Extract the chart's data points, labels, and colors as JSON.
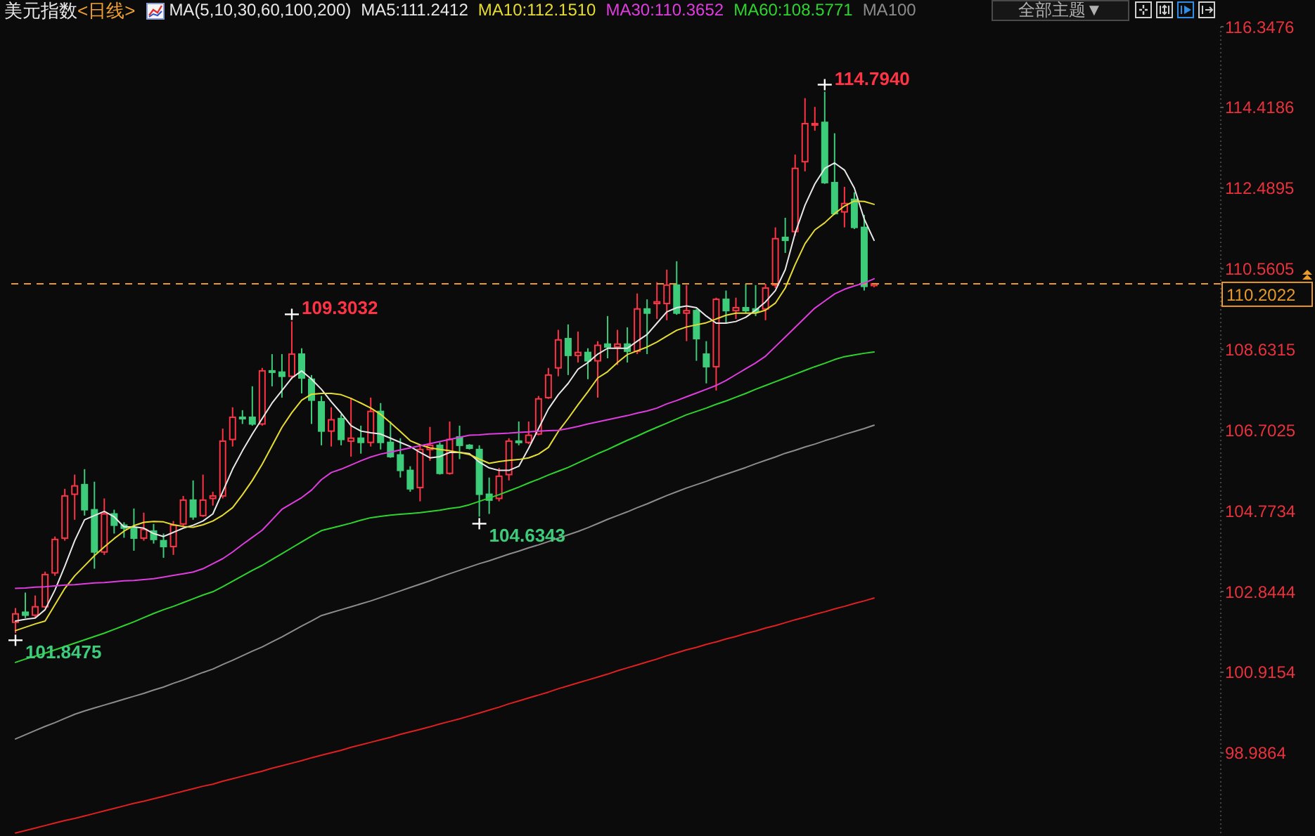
{
  "chart_data": {
    "type": "candlestick",
    "title": "美元指数",
    "subtitle": "<日线>",
    "legend_title": "MA(5,10,30,60,100,200)",
    "categories": [
      null,
      null,
      null,
      null,
      null,
      null,
      null,
      null,
      null,
      null,
      null,
      null,
      null,
      null,
      null,
      null,
      null,
      null,
      null,
      null,
      null,
      null,
      null,
      null,
      null,
      null,
      null,
      null,
      null,
      null,
      null,
      null,
      null,
      null,
      null,
      null,
      null,
      null,
      null,
      null,
      null,
      null,
      null,
      null,
      null,
      null,
      null,
      null,
      null,
      null,
      null,
      null,
      null,
      null,
      null,
      null,
      null,
      null,
      null,
      null,
      null,
      null,
      null,
      null,
      null,
      null,
      null,
      null,
      null,
      null,
      null,
      null,
      null,
      null,
      null,
      null,
      null,
      null,
      null,
      null,
      null,
      null,
      null,
      null,
      null,
      null,
      null,
      null
    ],
    "ohlc": [
      [
        102.11,
        102.45,
        101.8475,
        102.31
      ],
      [
        102.35,
        102.82,
        102.21,
        102.28
      ],
      [
        102.28,
        102.75,
        102.21,
        102.48
      ],
      [
        102.48,
        103.32,
        102.45,
        103.25
      ],
      [
        103.29,
        104.16,
        103.22,
        104.09
      ],
      [
        104.12,
        105.3,
        104.06,
        105.13
      ],
      [
        105.17,
        105.64,
        104.56,
        105.37
      ],
      [
        105.4,
        105.77,
        104.66,
        104.8
      ],
      [
        104.8,
        105.47,
        103.39,
        103.79
      ],
      [
        103.79,
        105.07,
        103.72,
        104.7
      ],
      [
        104.7,
        104.8,
        104.23,
        104.43
      ],
      [
        104.43,
        104.5,
        104.13,
        104.36
      ],
      [
        104.36,
        104.83,
        103.82,
        104.12
      ],
      [
        104.12,
        104.73,
        104.06,
        104.33
      ],
      [
        104.29,
        104.46,
        103.99,
        104.09
      ],
      [
        104.06,
        104.23,
        103.65,
        103.92
      ],
      [
        103.92,
        104.53,
        103.72,
        104.43
      ],
      [
        104.46,
        105.13,
        104.39,
        105.03
      ],
      [
        105.03,
        105.5,
        104.56,
        104.63
      ],
      [
        104.66,
        105.64,
        104.63,
        105.03
      ],
      [
        105.07,
        105.23,
        104.9,
        105.13
      ],
      [
        105.13,
        106.74,
        105.07,
        106.44
      ],
      [
        106.48,
        107.25,
        106.31,
        107.01
      ],
      [
        107.01,
        107.18,
        106.85,
        106.98
      ],
      [
        107.01,
        107.75,
        106.81,
        106.85
      ],
      [
        106.85,
        108.19,
        106.81,
        108.12
      ],
      [
        108.12,
        108.52,
        107.75,
        108.09
      ],
      [
        108.09,
        108.52,
        107.48,
        107.99
      ],
      [
        107.99,
        109.3032,
        107.92,
        108.52
      ],
      [
        108.52,
        108.66,
        107.58,
        107.95
      ],
      [
        107.92,
        108.02,
        106.85,
        107.42
      ],
      [
        107.38,
        107.52,
        106.34,
        106.68
      ],
      [
        106.68,
        107.25,
        106.31,
        106.95
      ],
      [
        106.98,
        107.08,
        106.34,
        106.48
      ],
      [
        106.44,
        107.48,
        106.07,
        106.51
      ],
      [
        106.51,
        106.81,
        106.14,
        106.41
      ],
      [
        106.41,
        107.48,
        106.31,
        107.15
      ],
      [
        107.15,
        107.35,
        106.24,
        106.41
      ],
      [
        106.41,
        106.91,
        106.04,
        106.07
      ],
      [
        106.11,
        106.51,
        105.57,
        105.74
      ],
      [
        105.74,
        105.84,
        105.23,
        105.3
      ],
      [
        105.33,
        106.34,
        105.0,
        106.24
      ],
      [
        106.24,
        106.78,
        105.97,
        106.34
      ],
      [
        106.34,
        106.41,
        105.64,
        105.67
      ],
      [
        105.67,
        106.91,
        105.64,
        106.48
      ],
      [
        106.54,
        106.81,
        106.01,
        106.34
      ],
      [
        106.34,
        106.37,
        106.24,
        106.27
      ],
      [
        106.24,
        106.34,
        104.6343,
        105.17
      ],
      [
        105.17,
        105.57,
        104.7,
        105.03
      ],
      [
        105.07,
        105.8,
        105.0,
        105.6
      ],
      [
        105.64,
        106.51,
        105.5,
        106.44
      ],
      [
        106.44,
        106.91,
        106.34,
        106.41
      ],
      [
        106.41,
        106.91,
        106.37,
        106.58
      ],
      [
        106.61,
        107.52,
        106.58,
        107.45
      ],
      [
        107.48,
        108.19,
        107.45,
        108.02
      ],
      [
        108.19,
        109.1,
        107.99,
        108.86
      ],
      [
        108.89,
        109.23,
        108.02,
        108.49
      ],
      [
        108.49,
        109.06,
        108.32,
        108.56
      ],
      [
        108.56,
        108.66,
        107.92,
        108.36
      ],
      [
        108.36,
        108.83,
        107.48,
        108.73
      ],
      [
        108.76,
        109.43,
        108.42,
        108.69
      ],
      [
        108.69,
        109.1,
        108.26,
        108.76
      ],
      [
        108.76,
        109.16,
        108.32,
        108.59
      ],
      [
        108.59,
        109.97,
        108.52,
        109.6
      ],
      [
        109.6,
        109.83,
        108.52,
        109.5
      ],
      [
        109.73,
        110.24,
        109.36,
        109.77
      ],
      [
        109.73,
        110.54,
        109.33,
        110.17
      ],
      [
        110.17,
        110.74,
        109.46,
        109.5
      ],
      [
        109.5,
        110.17,
        108.83,
        109.56
      ],
      [
        109.56,
        109.6,
        108.36,
        108.89
      ],
      [
        108.52,
        108.83,
        107.82,
        108.22
      ],
      [
        108.22,
        109.87,
        107.65,
        109.83
      ],
      [
        109.83,
        110.04,
        109.26,
        109.56
      ],
      [
        109.56,
        109.87,
        109.36,
        109.63
      ],
      [
        109.63,
        110.2,
        109.5,
        109.56
      ],
      [
        109.6,
        110.17,
        109.43,
        109.53
      ],
      [
        109.6,
        110.2,
        109.33,
        110.1
      ],
      [
        110.17,
        111.55,
        110.1,
        111.28
      ],
      [
        111.31,
        111.78,
        110.94,
        111.24
      ],
      [
        111.45,
        113.29,
        111.35,
        112.96
      ],
      [
        113.12,
        114.64,
        112.89,
        114.03
      ],
      [
        114.0,
        114.43,
        113.86,
        114.03
      ],
      [
        114.06,
        114.794,
        112.59,
        112.62
      ],
      [
        112.62,
        113.8,
        111.85,
        111.88
      ],
      [
        111.92,
        112.52,
        111.55,
        112.12
      ],
      [
        112.22,
        112.39,
        111.51,
        111.55
      ],
      [
        111.55,
        111.85,
        110.04,
        110.14
      ],
      [
        110.16,
        110.22,
        110.12,
        110.2022
      ]
    ],
    "colors": [
      "#ff3344",
      "#3dcc7a",
      "#ff3344",
      "#ff3344",
      "#ff3344",
      "#ff3344",
      "#ff3344",
      "#3dcc7a",
      "#3dcc7a",
      "#ff3344",
      "#3dcc7a",
      "#3dcc7a",
      "#3dcc7a",
      "#ff3344",
      "#3dcc7a",
      "#3dcc7a",
      "#ff3344",
      "#ff3344",
      "#3dcc7a",
      "#ff3344",
      "#ff3344",
      "#ff3344",
      "#ff3344",
      "#3dcc7a",
      "#3dcc7a",
      "#ff3344",
      "#3dcc7a",
      "#3dcc7a",
      "#ff3344",
      "#3dcc7a",
      "#3dcc7a",
      "#3dcc7a",
      "#ff3344",
      "#3dcc7a",
      "#ff3344",
      "#3dcc7a",
      "#ff3344",
      "#3dcc7a",
      "#3dcc7a",
      "#3dcc7a",
      "#3dcc7a",
      "#ff3344",
      "#ff3344",
      "#3dcc7a",
      "#ff3344",
      "#3dcc7a",
      "#3dcc7a",
      "#3dcc7a",
      "#3dcc7a",
      "#ff3344",
      "#ff3344",
      "#3dcc7a",
      "#ff3344",
      "#ff3344",
      "#ff3344",
      "#ff3344",
      "#3dcc7a",
      "#ff3344",
      "#3dcc7a",
      "#ff3344",
      "#3dcc7a",
      "#ff3344",
      "#3dcc7a",
      "#ff3344",
      "#3dcc7a",
      "#ff3344",
      "#ff3344",
      "#3dcc7a",
      "#ff3344",
      "#3dcc7a",
      "#3dcc7a",
      "#ff3344",
      "#3dcc7a",
      "#ff3344",
      "#3dcc7a",
      "#3dcc7a",
      "#ff3344",
      "#ff3344",
      "#3dcc7a",
      "#ff3344",
      "#ff3344",
      "#ff3344",
      "#3dcc7a",
      "#3dcc7a",
      "#ff3344",
      "#3dcc7a",
      "#3dcc7a",
      "#ff3344"
    ],
    "series": [
      {
        "type": "line",
        "name": "MA5:111.2412",
        "color": "#e8e8e8",
        "values": [
          102.14,
          102.18,
          102.21,
          102.41,
          102.88,
          103.45,
          104.06,
          104.56,
          104.66,
          104.76,
          104.63,
          104.39,
          104.39,
          104.36,
          104.23,
          104.16,
          104.26,
          104.36,
          104.43,
          104.53,
          104.7,
          105.23,
          105.77,
          106.21,
          106.61,
          106.98,
          107.35,
          107.65,
          107.95,
          108.12,
          107.92,
          107.68,
          107.38,
          107.11,
          106.81,
          106.68,
          106.64,
          106.61,
          106.51,
          106.41,
          106.31,
          106.17,
          106.04,
          106.07,
          106.17,
          106.17,
          106.14,
          105.94,
          105.8,
          105.74,
          105.74,
          105.84,
          106.27,
          106.74,
          107.21,
          107.55,
          107.82,
          108.16,
          108.32,
          108.52,
          108.66,
          108.66,
          108.66,
          108.83,
          108.99,
          109.26,
          109.53,
          109.63,
          109.67,
          109.63,
          109.43,
          109.26,
          109.26,
          109.3,
          109.4,
          109.57,
          109.77,
          110.04,
          110.54,
          111.41,
          112.08,
          112.59,
          112.96,
          113.09,
          112.92,
          112.49,
          111.75,
          111.24
        ]
      },
      {
        "type": "line",
        "name": "MA10:112.1510",
        "color": "#e6dc32",
        "values": [
          101.91,
          101.99,
          102.07,
          102.14,
          102.53,
          102.92,
          103.22,
          103.46,
          103.7,
          103.91,
          104.11,
          104.29,
          104.42,
          104.5,
          104.52,
          104.51,
          104.44,
          104.4,
          104.38,
          104.44,
          104.53,
          104.67,
          104.85,
          105.16,
          105.5,
          105.89,
          106.33,
          106.77,
          107.12,
          107.42,
          107.56,
          107.58,
          107.58,
          107.55,
          107.46,
          107.35,
          107.23,
          107.08,
          106.88,
          106.67,
          106.45,
          106.35,
          106.28,
          106.24,
          106.21,
          106.17,
          106.12,
          106.01,
          105.91,
          105.95,
          105.98,
          106.0,
          106.04,
          106.13,
          106.29,
          106.67,
          106.98,
          107.31,
          107.62,
          107.95,
          108.1,
          108.32,
          108.51,
          108.6,
          108.69,
          108.81,
          108.95,
          109.09,
          109.17,
          109.22,
          109.27,
          109.36,
          109.45,
          109.5,
          109.5,
          109.5,
          109.57,
          109.74,
          110.1,
          110.66,
          111.16,
          111.49,
          111.66,
          111.88,
          112.06,
          112.18,
          112.17,
          112.1
        ]
      },
      {
        "type": "line",
        "name": "MA30:110.3652",
        "color": "#e03ce0",
        "values": [
          102.92,
          102.93,
          102.95,
          102.96,
          102.98,
          103.0,
          103.01,
          103.03,
          103.05,
          103.06,
          103.08,
          103.1,
          103.11,
          103.13,
          103.15,
          103.19,
          103.23,
          103.27,
          103.31,
          103.39,
          103.51,
          103.63,
          103.79,
          103.97,
          104.14,
          104.31,
          104.56,
          104.81,
          104.95,
          105.09,
          105.27,
          105.52,
          105.69,
          105.77,
          105.87,
          105.97,
          106.06,
          106.13,
          106.18,
          106.23,
          106.28,
          106.33,
          106.38,
          106.43,
          106.48,
          106.53,
          106.58,
          106.59,
          106.61,
          106.62,
          106.63,
          106.65,
          106.66,
          106.68,
          106.69,
          106.7,
          106.74,
          106.79,
          106.85,
          106.9,
          106.95,
          107.0,
          107.05,
          107.11,
          107.16,
          107.23,
          107.33,
          107.41,
          107.5,
          107.59,
          107.68,
          107.77,
          107.89,
          108.03,
          108.17,
          108.31,
          108.47,
          108.7,
          108.93,
          109.16,
          109.39,
          109.62,
          109.79,
          109.96,
          110.07,
          110.15,
          110.22,
          110.32
        ]
      },
      {
        "type": "line",
        "name": "MA60:108.5771",
        "color": "#2ed42e",
        "values": [
          101.15,
          101.23,
          101.3,
          101.37,
          101.45,
          101.53,
          101.61,
          101.69,
          101.77,
          101.85,
          101.94,
          102.03,
          102.12,
          102.22,
          102.32,
          102.41,
          102.49,
          102.58,
          102.67,
          102.76,
          102.84,
          102.96,
          103.09,
          103.22,
          103.35,
          103.47,
          103.61,
          103.75,
          103.89,
          104.03,
          104.17,
          104.3,
          104.36,
          104.42,
          104.48,
          104.55,
          104.61,
          104.64,
          104.67,
          104.69,
          104.71,
          104.73,
          104.76,
          104.79,
          104.83,
          104.86,
          104.92,
          105.0,
          105.08,
          105.16,
          105.25,
          105.34,
          105.44,
          105.53,
          105.63,
          105.72,
          105.81,
          105.92,
          106.03,
          106.14,
          106.24,
          106.35,
          106.46,
          106.56,
          106.67,
          106.77,
          106.87,
          106.97,
          107.07,
          107.15,
          107.23,
          107.32,
          107.4,
          107.49,
          107.58,
          107.68,
          107.77,
          107.86,
          107.95,
          108.04,
          108.13,
          108.22,
          108.3,
          108.39,
          108.46,
          108.5,
          108.54,
          108.57
        ]
      },
      {
        "type": "line",
        "name": "MA100",
        "color": "#8c8c8c",
        "values": [
          99.32,
          99.42,
          99.52,
          99.62,
          99.71,
          99.81,
          99.91,
          99.99,
          100.06,
          100.13,
          100.2,
          100.27,
          100.34,
          100.41,
          100.49,
          100.56,
          100.65,
          100.73,
          100.82,
          100.91,
          100.99,
          101.1,
          101.2,
          101.31,
          101.42,
          101.52,
          101.64,
          101.76,
          101.89,
          102.02,
          102.14,
          102.27,
          102.34,
          102.41,
          102.48,
          102.55,
          102.62,
          102.7,
          102.78,
          102.86,
          102.94,
          103.02,
          103.1,
          103.19,
          103.27,
          103.35,
          103.43,
          103.51,
          103.58,
          103.66,
          103.74,
          103.81,
          103.89,
          103.96,
          104.04,
          104.12,
          104.2,
          104.28,
          104.37,
          104.47,
          104.57,
          104.66,
          104.75,
          104.85,
          104.94,
          105.04,
          105.14,
          105.23,
          105.32,
          105.4,
          105.48,
          105.57,
          105.65,
          105.73,
          105.81,
          105.9,
          105.98,
          106.06,
          106.15,
          106.22,
          106.3,
          106.37,
          106.45,
          106.52,
          106.6,
          106.67,
          106.74,
          106.82
        ]
      },
      {
        "type": "line",
        "color": "#e02020",
        "values": [
          97.07,
          97.13,
          97.19,
          97.25,
          97.31,
          97.37,
          97.42,
          97.48,
          97.54,
          97.6,
          97.66,
          97.72,
          97.78,
          97.83,
          97.89,
          97.95,
          98.01,
          98.07,
          98.13,
          98.19,
          98.24,
          98.31,
          98.37,
          98.43,
          98.49,
          98.55,
          98.62,
          98.68,
          98.74,
          98.8,
          98.87,
          98.93,
          98.99,
          99.05,
          99.12,
          99.18,
          99.24,
          99.3,
          99.36,
          99.43,
          99.49,
          99.55,
          99.61,
          99.68,
          99.74,
          99.8,
          99.87,
          99.94,
          100.01,
          100.08,
          100.16,
          100.23,
          100.3,
          100.37,
          100.44,
          100.52,
          100.59,
          100.66,
          100.73,
          100.8,
          100.87,
          100.95,
          101.02,
          101.09,
          101.16,
          101.23,
          101.31,
          101.38,
          101.45,
          101.51,
          101.58,
          101.64,
          101.71,
          101.77,
          101.84,
          101.9,
          101.97,
          102.03,
          102.1,
          102.17,
          102.23,
          102.3,
          102.36,
          102.43,
          102.49,
          102.56,
          102.62,
          102.69
        ]
      }
    ],
    "ylim": [
      97,
      116.3476
    ],
    "yticks": [
      98.9864,
      100.9154,
      102.8444,
      104.7734,
      106.7025,
      108.6315,
      110.5605,
      112.4895,
      114.4186,
      116.3476
    ],
    "tick_labels": "y",
    "legend": "top",
    "marker": "none",
    "line_style": "solid",
    "ref_lines": [
      {
        "axis": "y",
        "value": 110.2022,
        "label": "110.2022",
        "color": "#e89a2c",
        "line_style": "dashed"
      }
    ],
    "annotations": [
      "114.7940",
      "109.3032",
      "104.6343",
      "101.8475",
      "全部主题▼"
    ]
  }
}
